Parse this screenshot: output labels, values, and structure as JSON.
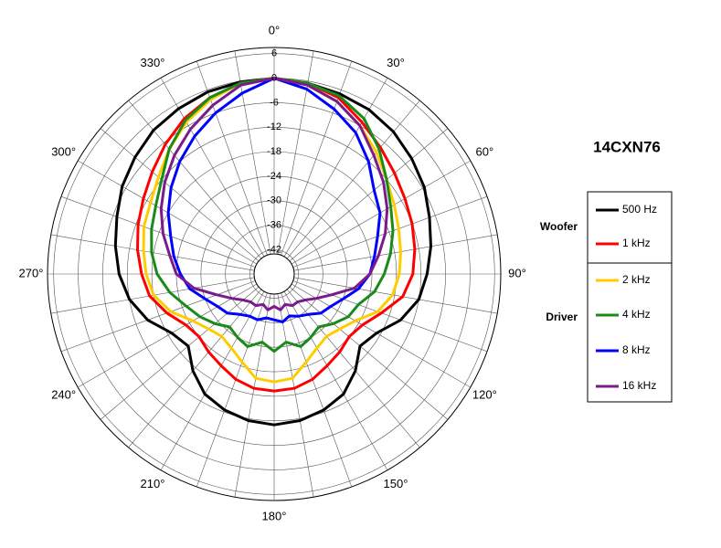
{
  "chart_data": {
    "type": "polar",
    "title": "14CXN76",
    "theta": [
      0,
      10,
      20,
      30,
      40,
      50,
      60,
      70,
      80,
      90,
      100,
      110,
      120,
      130,
      140,
      150,
      160,
      170,
      180,
      190,
      200,
      210,
      220,
      230,
      240,
      250,
      260,
      270,
      280,
      290,
      300,
      310,
      320,
      330,
      340,
      350
    ],
    "rlim": [
      -43,
      7.5
    ],
    "rticks": [
      6,
      0,
      -6,
      -12,
      -18,
      -24,
      -30,
      -36,
      -42
    ],
    "angle_ticks": [
      {
        "value": 0,
        "label": "0°"
      },
      {
        "value": 30,
        "label": "30°"
      },
      {
        "value": 60,
        "label": "60°"
      },
      {
        "value": 90,
        "label": "90°"
      },
      {
        "value": 120,
        "label": "120°"
      },
      {
        "value": 150,
        "label": "150°"
      },
      {
        "value": 180,
        "label": "180°"
      },
      {
        "value": 210,
        "label": "210°"
      },
      {
        "value": 240,
        "label": "240°"
      },
      {
        "value": 270,
        "label": "270°"
      },
      {
        "value": 300,
        "label": "300°"
      },
      {
        "value": 330,
        "label": "330°"
      }
    ],
    "legend_groups": [
      "Woofer",
      "Driver"
    ],
    "series": [
      {
        "name": "500 Hz",
        "color": "#000000",
        "values": [
          0,
          -0.5,
          -1,
          -1.5,
          -2.5,
          -4,
          -5.5,
          -7.5,
          -9,
          -10.5,
          -12,
          -15,
          -19,
          -20.5,
          -17,
          -14,
          -12.5,
          -11.5,
          -11,
          -11.5,
          -12.5,
          -14,
          -17,
          -20.5,
          -19,
          -15,
          -12,
          -10,
          -8.5,
          -7,
          -5,
          -3.5,
          -2,
          -1.2,
          -0.5,
          -0.2
        ]
      },
      {
        "name": "1 kHz",
        "color": "#ff0000",
        "values": [
          0,
          -0.5,
          -2,
          -5,
          -7.5,
          -9.5,
          -11,
          -12,
          -13,
          -14,
          -16,
          -20,
          -23,
          -24,
          -23,
          -22,
          -20.5,
          -19.5,
          -19.3,
          -19.5,
          -20.5,
          -22,
          -23,
          -24,
          -23,
          -20,
          -17,
          -15.5,
          -14,
          -12.5,
          -11,
          -9,
          -6.5,
          -4,
          -2,
          -0.5
        ]
      },
      {
        "name": "2 kHz",
        "color": "#ffcc00",
        "values": [
          0,
          -1,
          -3,
          -6,
          -9,
          -12,
          -14,
          -15.5,
          -16.5,
          -17.3,
          -18.5,
          -21,
          -25,
          -27,
          -28,
          -27,
          -25,
          -22,
          -21.5,
          -22,
          -25,
          -27,
          -28,
          -27,
          -25,
          -21,
          -18,
          -16.6,
          -15.5,
          -14,
          -13,
          -11,
          -8,
          -5,
          -2.5,
          -0.5
        ]
      },
      {
        "name": "4 kHz",
        "color": "#1a8a1a",
        "values": [
          0,
          -0.5,
          -1.5,
          -4,
          -8,
          -12,
          -15,
          -17,
          -19,
          -21,
          -23,
          -26,
          -27,
          -29,
          -31,
          -30,
          -29,
          -31,
          -29,
          -31,
          -29,
          -30,
          -31,
          -29,
          -27,
          -25,
          -22,
          -19.3,
          -17.5,
          -16,
          -14.5,
          -12,
          -8,
          -4.5,
          -2,
          -0.5
        ]
      },
      {
        "name": "8 kHz",
        "color": "#0000ff",
        "values": [
          0,
          -2,
          -5,
          -8,
          -12,
          -16,
          -18,
          -21,
          -23,
          -24.5,
          -27,
          -30,
          -32,
          -33,
          -35,
          -36,
          -37,
          -36,
          -36.7,
          -37,
          -36,
          -36,
          -35,
          -33,
          -32,
          -30,
          -27,
          -25,
          -23,
          -21,
          -18,
          -15,
          -12,
          -9,
          -6,
          -3
        ]
      },
      {
        "name": "16 kHz",
        "color": "#7b1a8a",
        "values": [
          0,
          -1,
          -3,
          -6,
          -10,
          -13,
          -16,
          -19,
          -22,
          -24.5,
          -28,
          -33,
          -36,
          -38,
          -39,
          -39,
          -40,
          -39,
          -40,
          -39,
          -40,
          -39,
          -39,
          -38,
          -36,
          -33,
          -28,
          -24,
          -22,
          -19,
          -16,
          -13,
          -10,
          -7,
          -4,
          -1
        ]
      }
    ]
  }
}
